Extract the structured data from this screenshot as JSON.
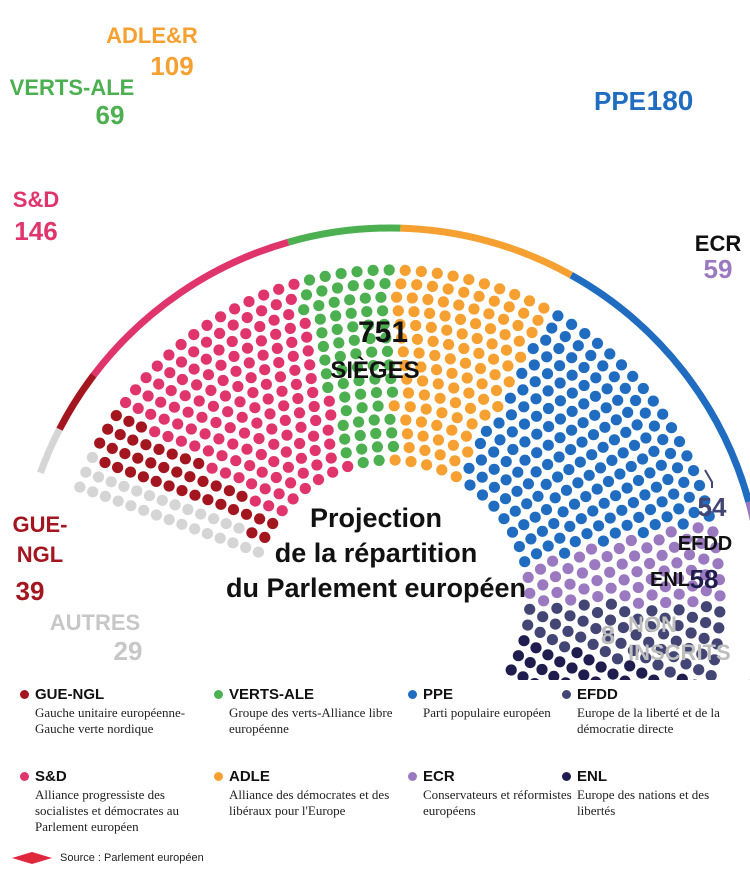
{
  "chart_data": {
    "type": "parliament",
    "center": {
      "total": "751",
      "label": "SIÈGES"
    },
    "subtitle": [
      "Projection",
      "de la répartition",
      "du Parlement européen"
    ],
    "groups": [
      {
        "id": "gue",
        "name": "GUE-NGL",
        "name_lines": [
          "GUE-",
          "NGL"
        ],
        "seats": 39,
        "color": "#a3161f"
      },
      {
        "id": "sd",
        "name": "S&D",
        "name_lines": [
          "S&D"
        ],
        "seats": 146,
        "color": "#e0346c"
      },
      {
        "id": "verts",
        "name": "VERTS-ALE",
        "name_lines": [
          "VERTS-ALE"
        ],
        "seats": 69,
        "color": "#4caf50"
      },
      {
        "id": "adle",
        "name": "ADLE&R",
        "name_lines": [
          "ADLE&R"
        ],
        "seats": 109,
        "color": "#f5a031"
      },
      {
        "id": "ppe",
        "name": "PPE",
        "name_lines": [
          "PPE"
        ],
        "seats": 180,
        "color": "#1f6cc0"
      },
      {
        "id": "ecr",
        "name": "ECR",
        "name_lines": [
          "ECR"
        ],
        "seats": 59,
        "color": "#9a79c0"
      },
      {
        "id": "efdd",
        "name": "EFDD",
        "name_lines": [
          "EFDD"
        ],
        "seats": 54,
        "color": "#434574"
      },
      {
        "id": "enl",
        "name": "ENL",
        "name_lines": [
          "ENL"
        ],
        "seats": 58,
        "color": "#1e1d4d"
      }
    ],
    "others": [
      {
        "id": "autres",
        "name": "AUTRES",
        "seats": 29,
        "color": "#d5d5d5"
      },
      {
        "id": "ni",
        "name": "NON INSCRITS",
        "name_lines": [
          "NON",
          "INSCRITS"
        ],
        "seats": 8,
        "color": "#c8c8c8"
      }
    ]
  },
  "legend": [
    {
      "abbr": "GUE-NGL",
      "color": "#a3161f",
      "desc": "Gauche unitaire européenne-Gauche verte nordique"
    },
    {
      "abbr": "VERTS-ALE",
      "color": "#4caf50",
      "desc": "Groupe des verts-Alliance libre européenne"
    },
    {
      "abbr": "PPE",
      "color": "#1f6cc0",
      "desc": "Parti populaire européen"
    },
    {
      "abbr": "EFDD",
      "color": "#434574",
      "desc": "Europe de la liberté et de la démocratie directe"
    },
    {
      "abbr": "S&D",
      "color": "#e0346c",
      "desc": "Alliance progressiste des socialistes et démocrates au Parlement européen"
    },
    {
      "abbr": "ADLE",
      "color": "#f5a031",
      "desc": "Alliance des démocrates et des libéraux pour l'Europe"
    },
    {
      "abbr": "ECR",
      "color": "#9a79c0",
      "desc": "Conservateurs et réformistes européens"
    },
    {
      "abbr": "ENL",
      "color": "#1e1d4d",
      "desc": "Europe des nations et des libertés"
    }
  ],
  "source": "Source : Parlement européen",
  "source_color": "#e0263c"
}
